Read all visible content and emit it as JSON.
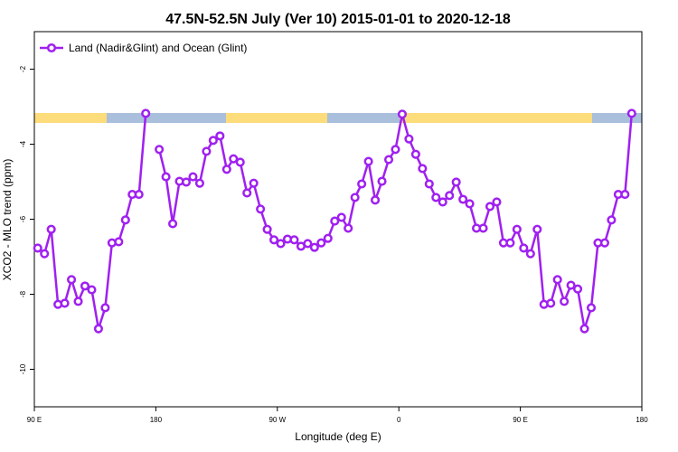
{
  "chart_data": {
    "type": "line",
    "title": "47.5N-52.5N July (Ver 10)   2015-01-01 to 2020-12-18",
    "x_label": "Longitude (deg E)",
    "y_label": "XCO2 - MLO trend (ppm)",
    "xlim": [
      90,
      540
    ],
    "ylim": [
      -11,
      -1
    ],
    "xticks": [
      {
        "value": 90,
        "label": "90 E"
      },
      {
        "value": 180,
        "label": "180"
      },
      {
        "value": 270,
        "label": "90 W"
      },
      {
        "value": 360,
        "label": "0"
      },
      {
        "value": 450,
        "label": "90 E"
      },
      {
        "value": 540,
        "label": "180"
      }
    ],
    "yticks": [
      -2,
      -4,
      -6,
      -8,
      -10
    ],
    "legend_position": "upper-left",
    "x": [
      92.5,
      97.5,
      102.5,
      107.5,
      112.5,
      117.5,
      122.5,
      127.5,
      132.5,
      137.5,
      142.5,
      147.5,
      152.5,
      157.5,
      162.5,
      167.5,
      172.5,
      177.5,
      182.5,
      187.5,
      192.5,
      197.5,
      202.5,
      207.5,
      212.5,
      217.5,
      222.5,
      227.5,
      232.5,
      237.5,
      242.5,
      247.5,
      252.5,
      257.5,
      262.5,
      267.5,
      272.5,
      277.5,
      282.5,
      287.5,
      292.5,
      297.5,
      302.5,
      307.5,
      312.5,
      317.5,
      322.5,
      327.5,
      332.5,
      337.5,
      342.5,
      347.5,
      352.5,
      357.5,
      362.5,
      367.5,
      372.5,
      377.5,
      382.5,
      387.5,
      392.5,
      397.5,
      402.5,
      407.5,
      412.5,
      417.5,
      422.5,
      427.5,
      432.5,
      437.5,
      442.5,
      447.5,
      452.5,
      457.5,
      462.5,
      467.5,
      472.5,
      477.5,
      482.5,
      487.5,
      492.5,
      497.5,
      502.5,
      507.5,
      512.5,
      517.5,
      522.5,
      527.5,
      532.5
    ],
    "series": [
      {
        "name": "Land (Nadir&Glint) and Ocean (Glint)",
        "color": "#a020f0",
        "values": [
          -6.77,
          -6.92,
          -6.27,
          -8.27,
          -8.24,
          -7.61,
          -8.19,
          -7.78,
          -7.88,
          -8.92,
          -8.36,
          -6.63,
          -6.6,
          -6.02,
          -5.34,
          -5.34,
          -3.18,
          null,
          -4.14,
          -4.87,
          -6.12,
          -4.99,
          -5.01,
          -4.87,
          -5.04,
          -4.19,
          -3.9,
          -3.78,
          -4.67,
          -4.39,
          -4.48,
          -5.3,
          -5.04,
          -5.73,
          -6.27,
          -6.55,
          -6.65,
          -6.53,
          -6.55,
          -6.72,
          -6.65,
          -6.75,
          -6.63,
          -6.51,
          -6.05,
          -5.95,
          -6.24,
          -5.42,
          -5.06,
          -4.46,
          -5.49,
          -4.99,
          -4.41,
          -4.14,
          -3.2,
          -3.86,
          -4.27,
          -4.65,
          -5.06,
          -5.42,
          -5.54,
          -5.37,
          -5.01,
          -5.47,
          -5.59,
          -6.24,
          -6.24,
          -5.66,
          -5.54,
          -6.63,
          -6.63,
          -6.27,
          -6.77,
          -6.92,
          -6.27,
          -8.27,
          -8.24,
          -7.61,
          -8.19,
          -7.76,
          -7.86,
          -8.92,
          -8.36,
          -6.63,
          -6.63,
          -6.02,
          -5.34,
          -5.34,
          -3.18
        ]
      }
    ]
  }
}
